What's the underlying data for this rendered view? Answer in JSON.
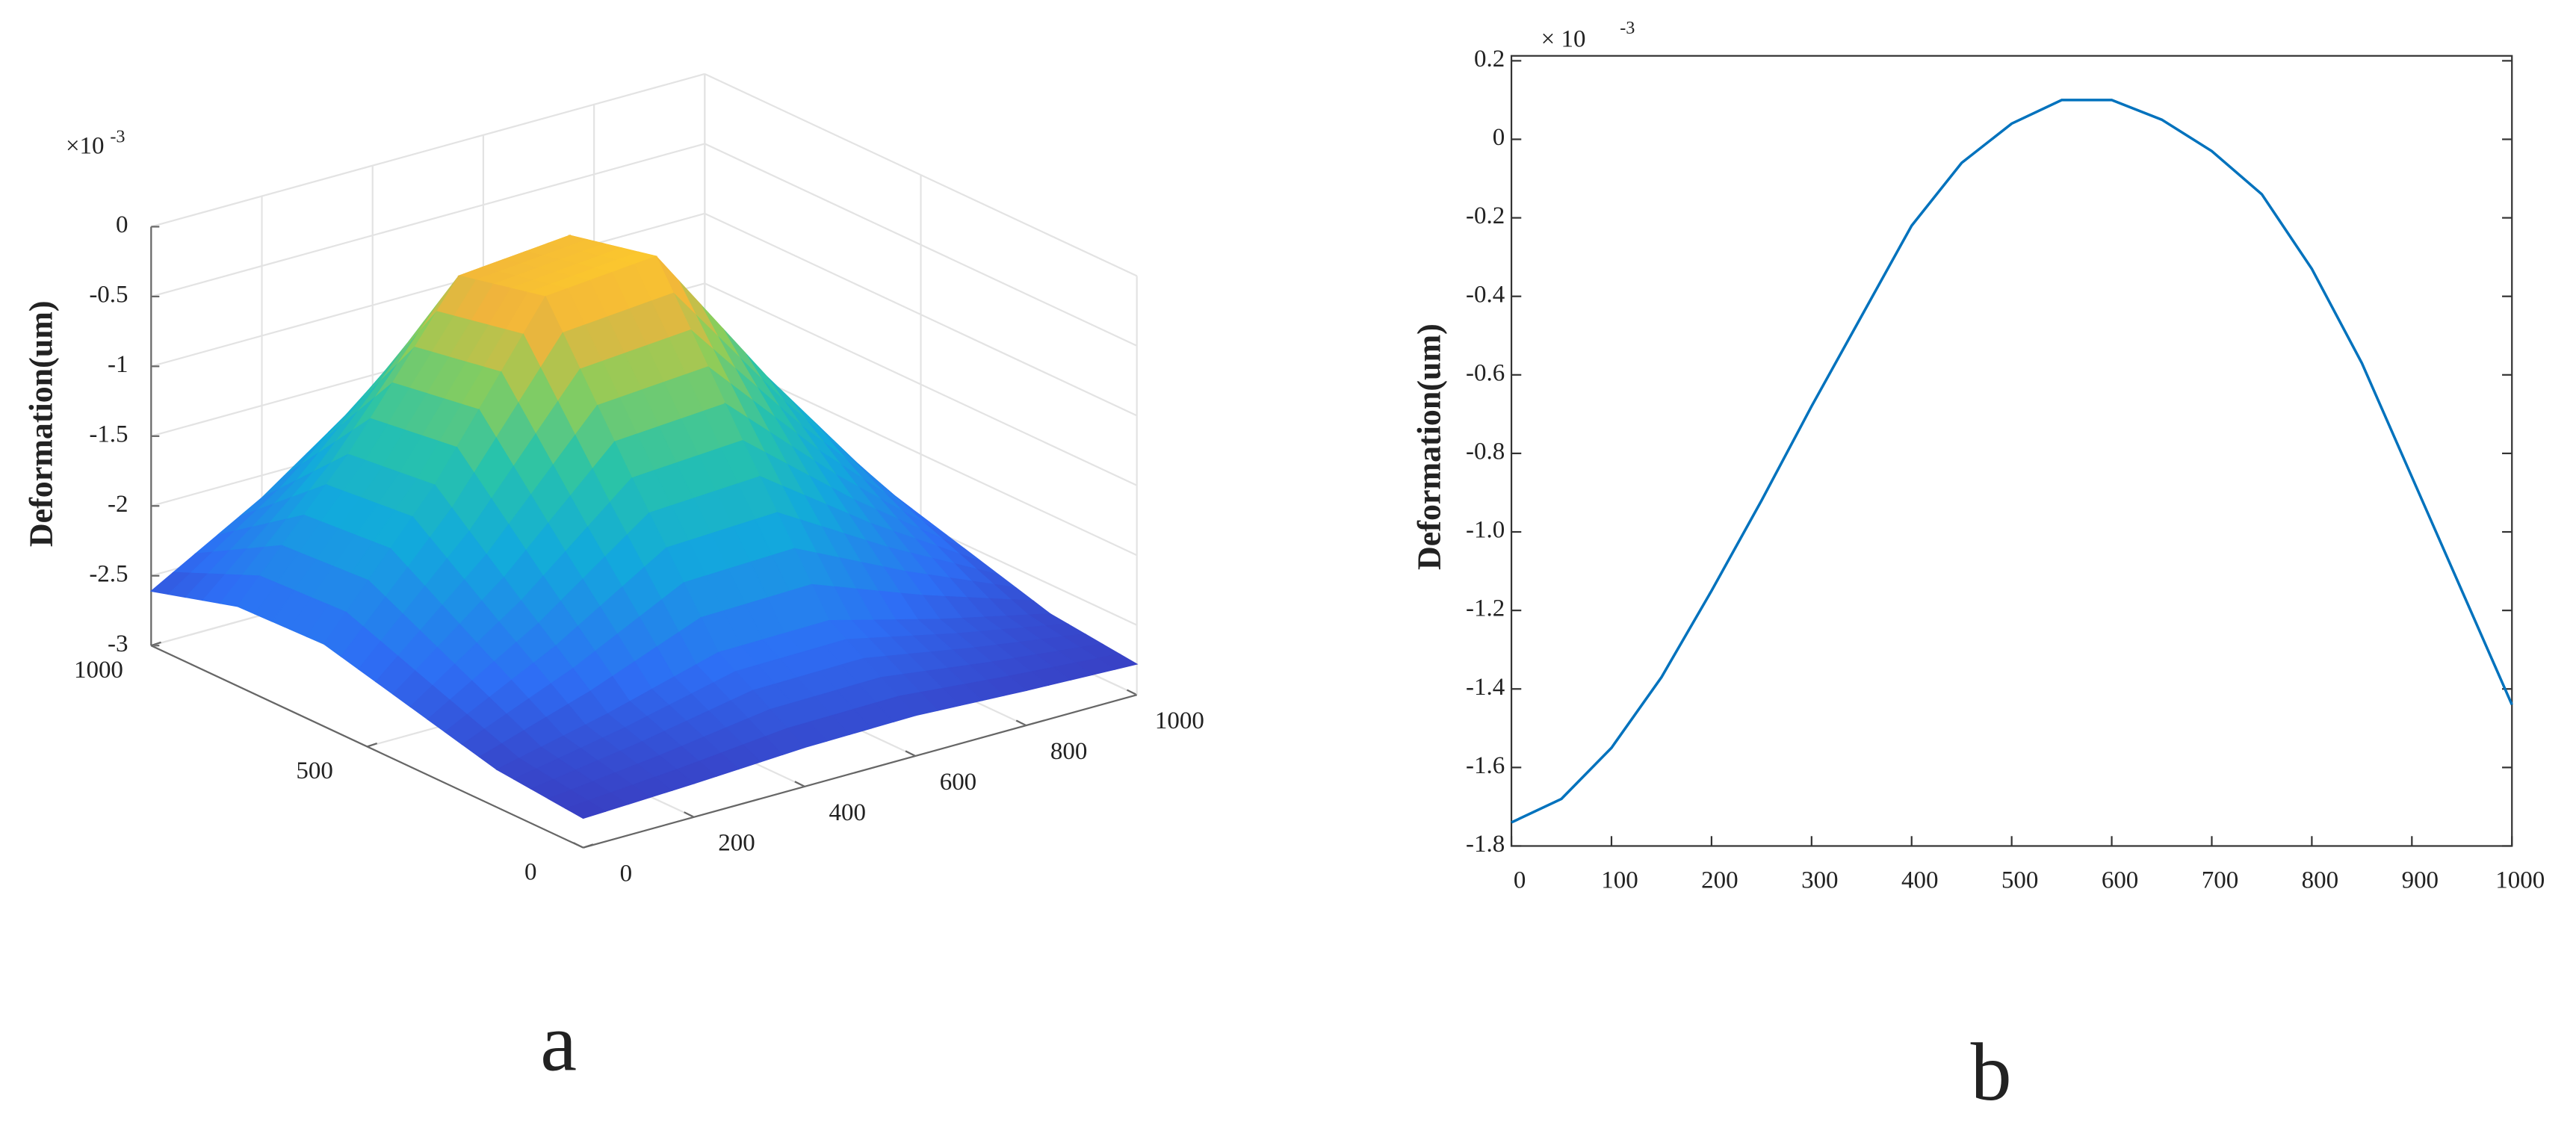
{
  "chart_data": [
    {
      "type": "surface",
      "panel_label": "a",
      "zlabel": "Deformation(um)",
      "multiplier": "×10",
      "exponent": "-3",
      "x": [
        0,
        200,
        400,
        600,
        800,
        1000
      ],
      "y": [
        0,
        200,
        400,
        600,
        800,
        1000
      ],
      "z": [
        [
          -2.79,
          -2.76,
          -2.72,
          -2.71,
          -2.75,
          -2.78
        ],
        [
          -2.73,
          -2.55,
          -2.33,
          -2.32,
          -2.53,
          -2.71
        ],
        [
          -2.57,
          -2.03,
          -1.37,
          -1.32,
          -1.96,
          -2.53
        ],
        [
          -2.41,
          -1.49,
          -0.36,
          -0.29,
          -1.37,
          -2.35
        ],
        [
          -2.43,
          -1.56,
          -0.5,
          -0.43,
          -1.45,
          -2.37
        ],
        [
          -2.61,
          -2.16,
          -1.6,
          -1.56,
          -2.09,
          -2.58
        ]
      ],
      "xlim": [
        0,
        1000
      ],
      "ylim": [
        0,
        1000
      ],
      "zlim": [
        -3,
        0
      ],
      "xticks": [
        0,
        200,
        400,
        600,
        800,
        1000
      ],
      "yticks": [
        0,
        500,
        1000
      ],
      "zticks": [
        0,
        -0.5,
        -1,
        -1.5,
        -2,
        -2.5,
        -3
      ],
      "colormap": "parula",
      "grid": true
    },
    {
      "type": "line",
      "panel_label": "b",
      "ylabel": "Deformation(um)",
      "multiplier": "× 10",
      "exponent": "-3",
      "x": [
        0,
        50,
        100,
        150,
        200,
        250,
        300,
        350,
        400,
        450,
        500,
        550,
        600,
        650,
        700,
        750,
        800,
        850,
        900,
        950,
        1000
      ],
      "values": [
        -1.74,
        -1.68,
        -1.55,
        -1.37,
        -1.15,
        -0.92,
        -0.68,
        -0.45,
        -0.22,
        -0.06,
        0.04,
        0.1,
        0.1,
        0.05,
        -0.03,
        -0.14,
        -0.33,
        -0.57,
        -0.86,
        -1.15,
        -1.44
      ],
      "color": "#0072bd",
      "xlim": [
        0,
        1000
      ],
      "ylim": [
        -1.8,
        0.2
      ],
      "xticks": [
        0,
        100,
        200,
        300,
        400,
        500,
        600,
        700,
        800,
        900,
        1000
      ],
      "yticks": [
        0.2,
        0,
        -0.2,
        -0.4,
        -0.6,
        -0.8,
        {
          "value": -1,
          "label": "-1.0"
        },
        -1.2,
        -1.4,
        -1.6,
        -1.8
      ]
    }
  ]
}
